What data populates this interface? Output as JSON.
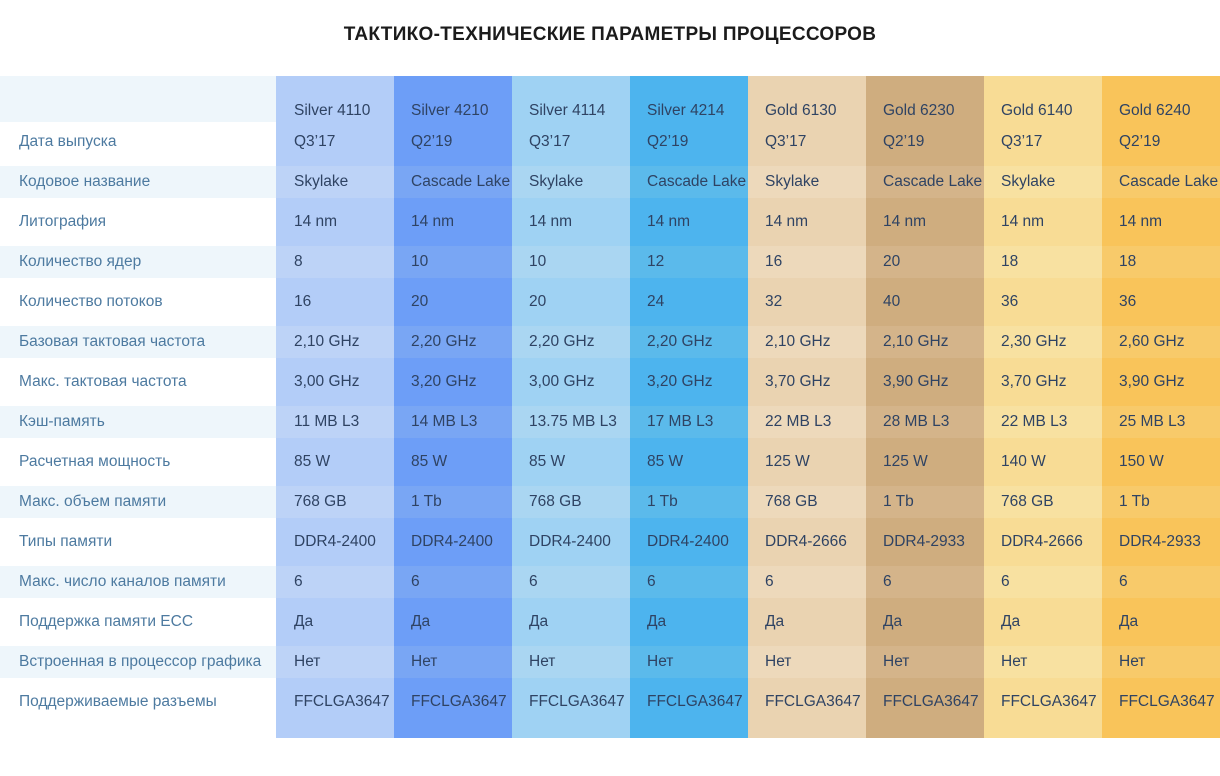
{
  "title": "ТАКТИКО-ТЕХНИЧЕСКИЕ ПАРАМЕТРЫ ПРОЦЕССОРОВ",
  "columns": [
    {
      "name": "Silver 4110",
      "color": "#b3cdf8",
      "stripe": "#bdd3f7"
    },
    {
      "name": "Silver 4210",
      "color": "#6d9ef7",
      "stripe": "#79a6f4"
    },
    {
      "name": "Silver 4114",
      "color": "#9fd2f3",
      "stripe": "#aad6f2"
    },
    {
      "name": "Silver 4214",
      "color": "#4db4ee",
      "stripe": "#5bbaeb"
    },
    {
      "name": "Gold 6130",
      "color": "#ead3b1",
      "stripe": "#edd9bb"
    },
    {
      "name": "Gold 6230",
      "color": "#cfad7f",
      "stripe": "#d4b48a"
    },
    {
      "name": "Gold 6140",
      "color": "#f8dc95",
      "stripe": "#f8e1a1"
    },
    {
      "name": "Gold 6240",
      "color": "#f9c45a",
      "stripe": "#f8ca6a"
    }
  ],
  "rows": [
    {
      "label": "Дата выпуска",
      "values": [
        "Q3’17",
        "Q2’19",
        "Q3’17",
        "Q2’19",
        "Q3’17",
        "Q2’19",
        "Q3’17",
        "Q2’19"
      ]
    },
    {
      "label": "Кодовое название",
      "values": [
        "Skylake",
        "Cascade Lake",
        "Skylake",
        "Cascade Lake",
        "Skylake",
        "Cascade Lake",
        "Skylake",
        "Cascade Lake"
      ]
    },
    {
      "label": "Литография",
      "values": [
        "14 nm",
        "14 nm",
        "14 nm",
        "14 nm",
        "14 nm",
        "14 nm",
        "14 nm",
        "14 nm"
      ]
    },
    {
      "label": "Количество ядер",
      "values": [
        "8",
        "10",
        "10",
        "12",
        "16",
        "20",
        "18",
        "18"
      ]
    },
    {
      "label": "Количество потоков",
      "values": [
        "16",
        "20",
        "20",
        "24",
        "32",
        "40",
        "36",
        "36"
      ]
    },
    {
      "label": "Базовая тактовая частота",
      "values": [
        "2,10 GHz",
        "2,20 GHz",
        "2,20 GHz",
        "2,20 GHz",
        "2,10 GHz",
        "2,10 GHz",
        "2,30 GHz",
        "2,60 GHz"
      ]
    },
    {
      "label": "Макс. тактовая частота",
      "values": [
        "3,00 GHz",
        "3,20 GHz",
        "3,00 GHz",
        "3,20 GHz",
        "3,70 GHz",
        "3,90 GHz",
        "3,70 GHz",
        "3,90 GHz"
      ]
    },
    {
      "label": "Кэш-память",
      "values": [
        "11 MB L3",
        "14 MB L3",
        "13.75 MB L3",
        "17 MB L3",
        "22 MB L3",
        "28 MB L3",
        "22 MB L3",
        "25 MB L3"
      ]
    },
    {
      "label": "Расчетная мощность",
      "values": [
        "85 W",
        "85 W",
        "85 W",
        "85 W",
        "125 W",
        "125 W",
        "140 W",
        "150 W"
      ]
    },
    {
      "label": "Макс. объем памяти",
      "values": [
        "768 GB",
        "1 Tb",
        "768 GB",
        "1 Tb",
        "768 GB",
        "1 Tb",
        "768 GB",
        "1 Tb"
      ]
    },
    {
      "label": "Типы памяти",
      "values": [
        "DDR4-2400",
        "DDR4-2400",
        "DDR4-2400",
        "DDR4-2400",
        "DDR4-2666",
        "DDR4-2933",
        "DDR4-2666",
        "DDR4-2933"
      ]
    },
    {
      "label": "Макс. число каналов памяти",
      "values": [
        "6",
        "6",
        "6",
        "6",
        "6",
        "6",
        "6",
        "6"
      ]
    },
    {
      "label": "Поддержка памяти ECC",
      "values": [
        "Да",
        "Да",
        "Да",
        "Да",
        "Да",
        "Да",
        "Да",
        "Да"
      ]
    },
    {
      "label": "Встроенная в процессор графика",
      "values": [
        "Нет",
        "Нет",
        "Нет",
        "Нет",
        "Нет",
        "Нет",
        "Нет",
        "Нет"
      ]
    },
    {
      "label": "Поддерживаемые разъемы",
      "values": [
        "FFCLGA3647",
        "FFCLGA3647",
        "FFCLGA3647",
        "FFCLGA3647",
        "FFCLGA3647",
        "FFCLGA3647",
        "FFCLGA3647",
        "FFCLGA3647"
      ]
    }
  ],
  "colors": {
    "band": "#eef6fb",
    "label_text": "#4d7aa0",
    "cell_text": "#2f4363"
  }
}
